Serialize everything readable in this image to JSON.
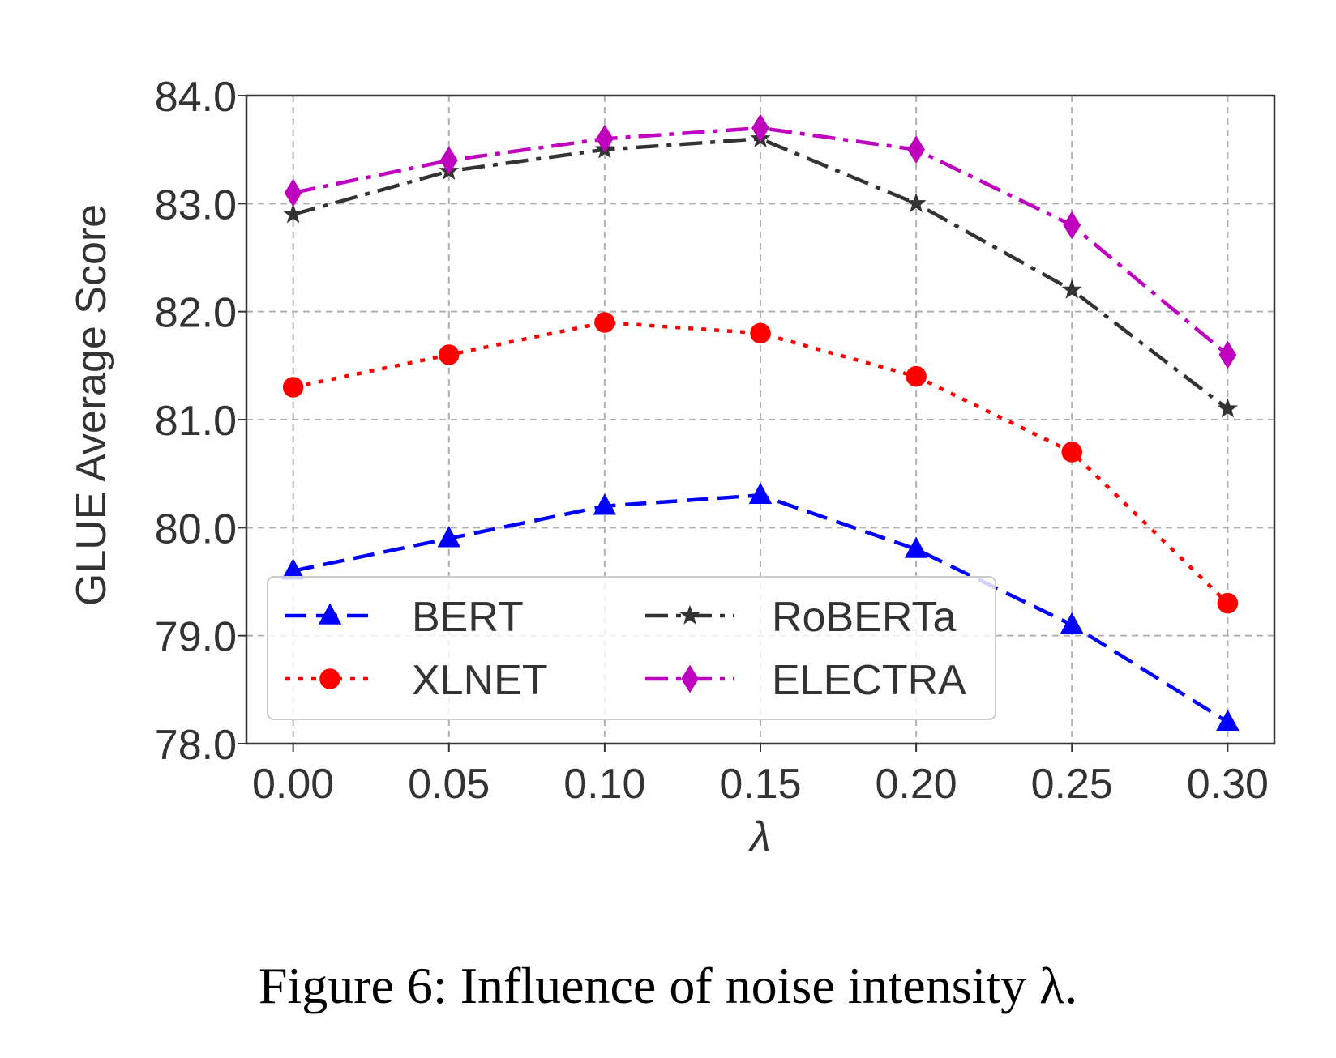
{
  "caption": "Figure 6: Influence of noise intensity λ.",
  "chart_data": {
    "type": "line",
    "title": "",
    "xlabel": "λ",
    "ylabel": "GLUE Average Score",
    "x": [
      0.0,
      0.05,
      0.1,
      0.15,
      0.2,
      0.25,
      0.3
    ],
    "xticks": [
      "0.00",
      "0.05",
      "0.10",
      "0.15",
      "0.20",
      "0.25",
      "0.30"
    ],
    "yticks": [
      "78.0",
      "79.0",
      "80.0",
      "81.0",
      "82.0",
      "83.0",
      "84.0"
    ],
    "xlim": [
      -0.015,
      0.315
    ],
    "ylim": [
      78.0,
      84.0
    ],
    "grid": true,
    "legend": {
      "placement": "lower-left",
      "columns": 2
    },
    "series": [
      {
        "name": "BERT",
        "color": "#0000ff",
        "dash": "dashed",
        "marker": "triangle",
        "values": [
          79.6,
          79.9,
          80.2,
          80.3,
          79.8,
          79.1,
          78.2
        ]
      },
      {
        "name": "XLNET",
        "color": "#ff0000",
        "dash": "dotted",
        "marker": "circle",
        "values": [
          81.3,
          81.6,
          81.9,
          81.8,
          81.4,
          80.7,
          79.3
        ]
      },
      {
        "name": "RoBERTa",
        "color": "#333333",
        "dash": "dashdot",
        "marker": "star",
        "values": [
          82.9,
          83.3,
          83.5,
          83.6,
          83.0,
          82.2,
          81.1
        ]
      },
      {
        "name": "ELECTRA",
        "color": "#bf00bf",
        "dash": "dashdot",
        "marker": "diamond",
        "values": [
          83.1,
          83.4,
          83.6,
          83.7,
          83.5,
          82.8,
          81.6
        ]
      }
    ]
  }
}
